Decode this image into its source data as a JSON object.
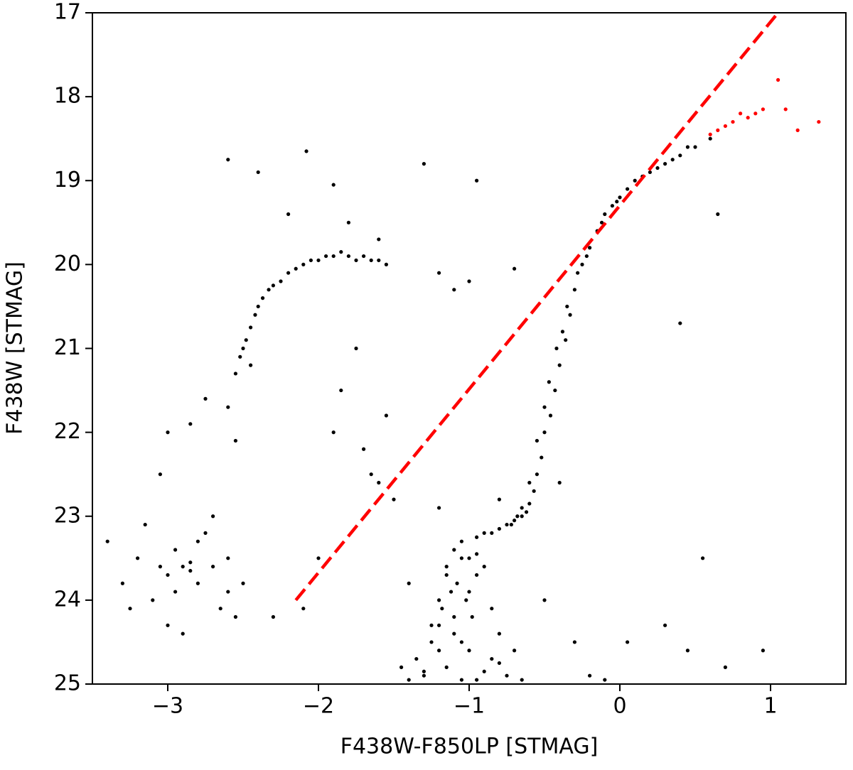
{
  "chart_data": {
    "type": "scatter",
    "x_label": "F438W-F850LP [STMAG]",
    "y_label": "F438W [STMAG]",
    "xlim": [
      -3.5,
      1.5
    ],
    "ylim": [
      17,
      25
    ],
    "y_inverted": true,
    "xticks": [
      {
        "value": -3,
        "label": "−3"
      },
      {
        "value": -2,
        "label": "−2"
      },
      {
        "value": -1,
        "label": "−1"
      },
      0,
      1
    ],
    "yticks": [
      17,
      18,
      19,
      20,
      21,
      22,
      23,
      24,
      25
    ],
    "series": [
      {
        "color": "#000000",
        "x": [
          -2.55,
          -2.52,
          -2.5,
          -2.48,
          -2.45,
          -2.42,
          -2.4,
          -2.37,
          -2.33,
          -2.3,
          -2.25,
          -2.2,
          -2.15,
          -2.1,
          -2.05,
          -2.0,
          -1.95,
          -1.9,
          -1.85,
          -1.8,
          -1.75,
          -1.7,
          -1.65,
          -1.6,
          -1.55,
          0.6,
          0.5,
          0.4,
          0.3,
          0.2,
          0.1,
          0.05,
          0,
          -0.05,
          -0.1,
          -0.15,
          -0.2,
          -0.25,
          -0.3,
          -0.33,
          -0.36,
          -0.4,
          -0.43,
          -0.46,
          -0.5,
          -0.52,
          -0.55,
          -0.57,
          -0.6,
          -0.62,
          -0.65,
          -0.7,
          -0.75,
          -0.8,
          -0.85,
          0.45,
          0.35,
          0.25,
          0.15,
          -0.02,
          -0.12,
          -0.22,
          -0.28,
          -0.35,
          -0.38,
          -0.42,
          -0.47,
          -0.5,
          -0.55,
          -0.6,
          -0.65,
          -0.68,
          -0.72,
          -0.9,
          -0.95,
          -1.05,
          -1.1,
          -1.0,
          -1.15,
          -0.95,
          -1.08,
          -1.12,
          -1.02,
          -1.18,
          -0.98,
          -1.2,
          -1.05,
          -0.9,
          -1.1,
          -1.25,
          -1.0,
          -0.85,
          -1.15,
          -1.3,
          -0.95,
          -1.05,
          -0.8,
          -1.2,
          -1.35,
          -0.9,
          -1.1,
          -0.75,
          -1.0,
          -1.25,
          -0.85,
          -1.4,
          -0.7,
          -1.15,
          -0.95,
          -1.3,
          -0.8,
          -1.05,
          -1.45,
          -0.65,
          -1.2,
          -3.4,
          -3.3,
          -3.2,
          -3.1,
          -3.05,
          -3.0,
          -2.95,
          -2.9,
          -2.85,
          -2.8,
          -2.75,
          -2.7,
          -2.65,
          -2.6,
          -2.55,
          -3.15,
          -3.0,
          -2.9,
          -2.8,
          -2.7,
          -3.25,
          -2.95,
          -2.85,
          -2.6,
          -2.5,
          -2.6,
          -2.4,
          -2.08,
          -1.9,
          -1.3,
          -0.95,
          -2.2,
          -1.8,
          -1.6,
          -1.2,
          -1.1,
          -1.0,
          -0.7,
          -1.75,
          -1.85,
          -1.55,
          -1.9,
          -1.7,
          -1.65,
          -1.6,
          -1.5,
          -2.45,
          -2.6,
          -2.55,
          -2.75,
          -2.85,
          -3.0,
          -3.05,
          -2.0,
          -1.4,
          -0.4,
          0.4,
          0.55,
          0.65,
          0.45,
          -0.5,
          -0.3,
          0.3,
          0.7,
          0.95,
          -0.1,
          -0.2,
          0.05,
          -2.3,
          -2.1,
          -1.2,
          -0.8
        ],
        "values": [
          21.3,
          21.1,
          21.0,
          20.9,
          20.75,
          20.6,
          20.5,
          20.4,
          20.3,
          20.25,
          20.2,
          20.1,
          20.05,
          20.0,
          19.95,
          19.95,
          19.9,
          19.9,
          19.85,
          19.9,
          19.95,
          19.9,
          19.95,
          19.95,
          20.0,
          18.5,
          18.6,
          18.7,
          18.8,
          18.9,
          19.0,
          19.1,
          19.2,
          19.3,
          19.4,
          19.6,
          19.8,
          20.0,
          20.3,
          20.6,
          20.9,
          21.2,
          21.5,
          21.8,
          22.0,
          22.3,
          22.5,
          22.7,
          22.85,
          22.95,
          23.0,
          23.05,
          23.1,
          23.15,
          23.2,
          18.6,
          18.75,
          18.85,
          18.95,
          19.25,
          19.5,
          19.9,
          20.1,
          20.5,
          20.8,
          21.0,
          21.4,
          21.7,
          22.1,
          22.6,
          22.9,
          23.0,
          23.1,
          23.2,
          23.25,
          23.3,
          23.4,
          23.5,
          23.6,
          23.7,
          23.8,
          23.9,
          24.0,
          24.1,
          24.2,
          24.3,
          23.5,
          23.6,
          24.4,
          24.5,
          24.6,
          24.7,
          24.8,
          24.9,
          24.95,
          24.5,
          24.4,
          24.0,
          24.7,
          24.85,
          24.2,
          24.9,
          23.9,
          24.3,
          24.1,
          24.95,
          24.6,
          23.7,
          23.45,
          24.85,
          24.75,
          24.95,
          24.8,
          24.95,
          24.6,
          23.3,
          23.8,
          23.5,
          24.0,
          23.6,
          23.7,
          23.4,
          23.6,
          23.55,
          23.8,
          23.2,
          23.6,
          24.1,
          23.9,
          24.2,
          23.1,
          24.3,
          24.4,
          23.3,
          23.0,
          24.1,
          23.9,
          23.65,
          23.5,
          23.8,
          18.75,
          18.9,
          18.65,
          19.05,
          18.8,
          19.0,
          19.4,
          19.5,
          19.7,
          20.1,
          20.3,
          20.2,
          20.05,
          21.0,
          21.5,
          21.8,
          22.0,
          22.2,
          22.5,
          22.6,
          22.8,
          21.2,
          21.7,
          22.1,
          21.6,
          21.9,
          22.0,
          22.5,
          23.5,
          23.8,
          22.6,
          20.7,
          23.5,
          19.4,
          24.6,
          24.0,
          24.5,
          24.3,
          24.8,
          24.6,
          24.95,
          24.9,
          24.5,
          24.2,
          24.1,
          22.9,
          22.8
        ]
      },
      {
        "color": "#ff0000",
        "x": [
          0.6,
          0.65,
          0.7,
          0.75,
          0.8,
          0.85,
          0.9,
          0.95,
          1.05,
          1.1,
          1.18,
          1.32
        ],
        "values": [
          18.45,
          18.4,
          18.35,
          18.3,
          18.2,
          18.25,
          18.2,
          18.15,
          17.8,
          18.15,
          18.4,
          18.3
        ]
      }
    ],
    "lines": [
      {
        "color": "#ff0000",
        "dashed": true,
        "x": [
          -2.15,
          1.05
        ],
        "values": [
          24.0,
          17.0
        ]
      }
    ]
  }
}
